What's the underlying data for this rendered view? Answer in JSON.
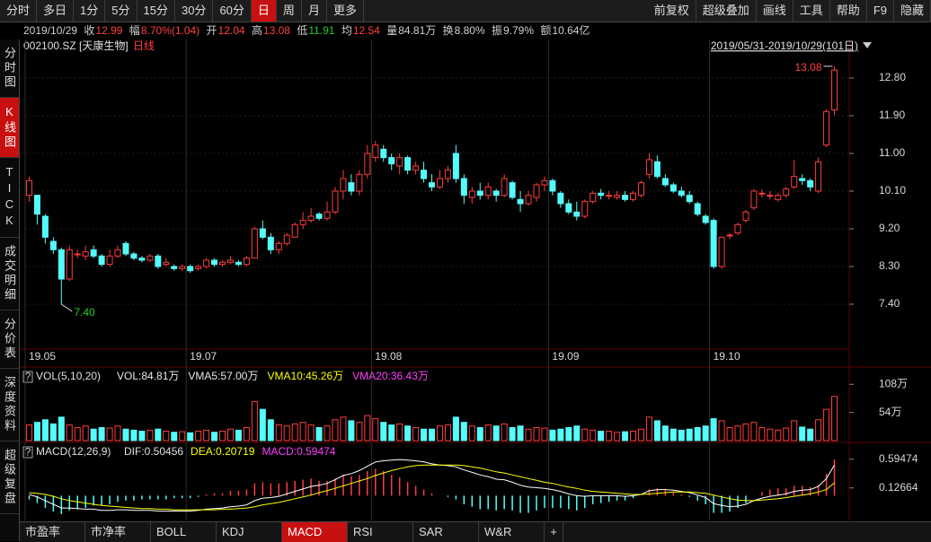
{
  "toolbar": {
    "left": [
      "分时",
      "多日",
      "1分",
      "5分",
      "15分",
      "30分",
      "60分",
      "日",
      "周",
      "月",
      "更多"
    ],
    "right": [
      "前复权",
      "超级叠加",
      "画线",
      "工具",
      "帮助",
      "F9",
      "隐藏"
    ]
  },
  "quote": {
    "date": "2019/10/29",
    "items": [
      {
        "label": "收",
        "value": 12.99
      },
      {
        "label": "幅",
        "value": "8.70%(1.04)"
      },
      {
        "label": "开",
        "value": 12.04
      },
      {
        "label": "高",
        "value": 13.08
      },
      {
        "label": "低",
        "value": 11.91
      },
      {
        "label": "均",
        "value": 12.54
      },
      {
        "label": "量",
        "value": "84.81万"
      },
      {
        "label": "换",
        "value": "8.80%"
      },
      {
        "label": "振",
        "value": "9.79%"
      },
      {
        "label": "额",
        "value": "10.64亿"
      }
    ]
  },
  "sidebar": [
    "分时图",
    "K线图",
    "TICK",
    "成交明细",
    "分价表",
    "深度资料",
    "超级复盘"
  ],
  "tabs": [
    "市盈率",
    "市净率",
    "BOLL",
    "KDJ",
    "MACD",
    "RSI",
    "SAR",
    "W&R",
    "+"
  ],
  "chart_data": [
    {
      "type": "candlestick",
      "title": "002100.SZ [天康生物]",
      "subtitle": "日线",
      "range_label": "2019/05/31-2019/10/29(101日)",
      "high_label": "13.08",
      "low_label": "7.40",
      "up_color": "#ff3c3c",
      "down_color": "#54fcfc",
      "grid": true,
      "categories": [
        "19.05",
        null,
        null,
        null,
        null,
        null,
        null,
        null,
        null,
        null,
        null,
        null,
        null,
        null,
        null,
        null,
        null,
        null,
        null,
        null,
        "19.07",
        null,
        null,
        null,
        null,
        null,
        null,
        null,
        null,
        null,
        null,
        null,
        null,
        null,
        null,
        null,
        null,
        null,
        null,
        null,
        null,
        null,
        null,
        "19.08",
        null,
        null,
        null,
        null,
        null,
        null,
        null,
        null,
        null,
        null,
        null,
        null,
        null,
        null,
        null,
        null,
        null,
        null,
        null,
        null,
        null,
        "19.09",
        null,
        null,
        null,
        null,
        null,
        null,
        null,
        null,
        null,
        null,
        null,
        null,
        null,
        null,
        null,
        null,
        null,
        null,
        null,
        "19.10",
        null,
        null,
        null,
        null,
        null,
        null,
        null,
        null,
        null,
        null,
        null,
        null,
        null,
        null,
        null
      ],
      "ohlc": [
        [
          10.0,
          10.45,
          9.85,
          10.35
        ],
        [
          10.0,
          10.0,
          9.3,
          9.55
        ],
        [
          9.5,
          9.55,
          8.85,
          9.0
        ],
        [
          8.9,
          9.0,
          8.6,
          8.7
        ],
        [
          8.7,
          8.75,
          7.4,
          8.0
        ],
        [
          8.0,
          8.8,
          7.95,
          8.7
        ],
        [
          8.6,
          8.7,
          8.5,
          8.6
        ],
        [
          8.55,
          8.8,
          8.45,
          8.65
        ],
        [
          8.7,
          8.8,
          8.5,
          8.55
        ],
        [
          8.55,
          8.6,
          8.3,
          8.35
        ],
        [
          8.35,
          8.7,
          8.3,
          8.55
        ],
        [
          8.55,
          8.8,
          8.5,
          8.7
        ],
        [
          8.85,
          8.9,
          8.55,
          8.6
        ],
        [
          8.6,
          8.65,
          8.45,
          8.5
        ],
        [
          8.5,
          8.55,
          8.4,
          8.45
        ],
        [
          8.45,
          8.6,
          8.4,
          8.55
        ],
        [
          8.55,
          8.6,
          8.25,
          8.3
        ],
        [
          8.35,
          8.5,
          8.3,
          8.4
        ],
        [
          8.3,
          8.35,
          8.2,
          8.25
        ],
        [
          8.25,
          8.35,
          8.2,
          8.3
        ],
        [
          8.3,
          8.35,
          8.15,
          8.2
        ],
        [
          8.25,
          8.35,
          8.2,
          8.3
        ],
        [
          8.3,
          8.5,
          8.25,
          8.45
        ],
        [
          8.45,
          8.5,
          8.3,
          8.35
        ],
        [
          8.35,
          8.45,
          8.3,
          8.4
        ],
        [
          8.4,
          8.55,
          8.35,
          8.45
        ],
        [
          8.4,
          8.45,
          8.3,
          8.35
        ],
        [
          8.35,
          8.55,
          8.3,
          8.5
        ],
        [
          8.5,
          9.25,
          8.5,
          9.2
        ],
        [
          9.2,
          9.4,
          8.95,
          9.0
        ],
        [
          9.0,
          9.1,
          8.6,
          8.7
        ],
        [
          8.7,
          8.9,
          8.6,
          8.85
        ],
        [
          8.85,
          9.1,
          8.8,
          9.05
        ],
        [
          9.0,
          9.35,
          9.0,
          9.3
        ],
        [
          9.3,
          9.6,
          9.2,
          9.4
        ],
        [
          9.4,
          9.7,
          9.35,
          9.5
        ],
        [
          9.55,
          9.6,
          9.4,
          9.45
        ],
        [
          9.45,
          9.85,
          9.4,
          9.6
        ],
        [
          9.6,
          10.2,
          9.55,
          10.1
        ],
        [
          10.1,
          10.6,
          9.9,
          10.4
        ],
        [
          10.3,
          10.5,
          10.0,
          10.1
        ],
        [
          10.1,
          10.6,
          10.0,
          10.5
        ],
        [
          10.5,
          11.2,
          10.4,
          11.0
        ],
        [
          10.9,
          11.3,
          10.8,
          11.2
        ],
        [
          11.1,
          11.2,
          10.8,
          10.9
        ],
        [
          10.9,
          11.0,
          10.6,
          10.75
        ],
        [
          10.7,
          11.0,
          10.5,
          10.9
        ],
        [
          10.9,
          10.95,
          10.5,
          10.6
        ],
        [
          10.6,
          10.8,
          10.5,
          10.7
        ],
        [
          10.6,
          10.8,
          10.3,
          10.4
        ],
        [
          10.3,
          10.5,
          10.1,
          10.2
        ],
        [
          10.2,
          10.6,
          10.15,
          10.4
        ],
        [
          10.4,
          10.7,
          10.3,
          10.6
        ],
        [
          11.0,
          11.2,
          10.3,
          10.4
        ],
        [
          10.4,
          10.5,
          9.8,
          10.0
        ],
        [
          9.95,
          10.2,
          9.8,
          10.1
        ],
        [
          10.1,
          10.3,
          9.9,
          10.0
        ],
        [
          10.0,
          10.3,
          9.9,
          10.2
        ],
        [
          10.1,
          10.15,
          9.85,
          10.0
        ],
        [
          10.0,
          10.5,
          9.95,
          10.4
        ],
        [
          10.3,
          10.35,
          9.9,
          9.95
        ],
        [
          9.9,
          10.1,
          9.6,
          9.8
        ],
        [
          9.8,
          10.1,
          9.75,
          10.0
        ],
        [
          9.95,
          10.3,
          9.85,
          10.25
        ],
        [
          10.25,
          10.45,
          10.1,
          10.35
        ],
        [
          10.35,
          10.4,
          10.0,
          10.1
        ],
        [
          10.05,
          10.1,
          9.7,
          9.8
        ],
        [
          9.8,
          9.9,
          9.55,
          9.6
        ],
        [
          9.6,
          9.85,
          9.4,
          9.5
        ],
        [
          9.5,
          9.9,
          9.45,
          9.85
        ],
        [
          9.85,
          10.1,
          9.8,
          10.05
        ],
        [
          10.05,
          10.15,
          9.9,
          10.0
        ],
        [
          10.0,
          10.1,
          9.9,
          10.0
        ],
        [
          9.95,
          10.1,
          9.9,
          10.0
        ],
        [
          10.0,
          10.1,
          9.85,
          9.9
        ],
        [
          9.9,
          10.1,
          9.85,
          10.05
        ],
        [
          10.0,
          10.35,
          9.95,
          10.3
        ],
        [
          10.5,
          11.0,
          10.4,
          10.85
        ],
        [
          10.8,
          10.95,
          10.4,
          10.45
        ],
        [
          10.4,
          10.5,
          10.2,
          10.25
        ],
        [
          10.25,
          10.3,
          10.05,
          10.1
        ],
        [
          10.1,
          10.2,
          9.95,
          10.0
        ],
        [
          10.0,
          10.1,
          9.8,
          9.85
        ],
        [
          9.8,
          9.85,
          9.5,
          9.55
        ],
        [
          9.5,
          9.55,
          9.3,
          9.35
        ],
        [
          9.4,
          9.45,
          8.25,
          8.3
        ],
        [
          8.3,
          9.0,
          8.25,
          9.0
        ],
        [
          9.05,
          9.1,
          8.95,
          9.05
        ],
        [
          9.1,
          9.35,
          9.05,
          9.3
        ],
        [
          9.4,
          9.65,
          9.35,
          9.6
        ],
        [
          9.7,
          10.15,
          9.65,
          10.1
        ],
        [
          10.05,
          10.15,
          9.95,
          10.05
        ],
        [
          10.0,
          10.1,
          9.9,
          10.0
        ],
        [
          9.9,
          10.05,
          9.85,
          10.0
        ],
        [
          10.0,
          10.2,
          9.95,
          10.15
        ],
        [
          10.2,
          10.85,
          10.15,
          10.45
        ],
        [
          10.4,
          10.5,
          10.25,
          10.35
        ],
        [
          10.35,
          10.4,
          10.1,
          10.2
        ],
        [
          10.1,
          10.9,
          10.05,
          10.8
        ],
        [
          11.2,
          12.05,
          11.15,
          12.0
        ],
        [
          12.04,
          13.08,
          11.91,
          12.99
        ]
      ],
      "ylim": [
        6.35,
        13.72
      ],
      "yticks": [
        {
          "value": 7.4,
          "label": "7.40"
        },
        {
          "value": 8.3,
          "label": "8.30"
        },
        {
          "value": 9.2,
          "label": "9.20"
        },
        {
          "value": 10.1,
          "label": "10.10"
        },
        {
          "value": 11.0,
          "label": "11.00"
        },
        {
          "value": 11.9,
          "label": "11.90"
        },
        {
          "value": 12.8,
          "label": "12.80"
        }
      ]
    },
    {
      "type": "volume",
      "title": "VOL(5,10,20)",
      "legend": [
        {
          "name": "VOL:84.81万",
          "color": "#e8e8e8"
        },
        {
          "name": "VMA5:57.00万",
          "color": "#e8e8e8"
        },
        {
          "name": "VMA10:45.26万",
          "color": "#ffff00"
        },
        {
          "name": "VMA20:36.43万",
          "color": "#ff40ff"
        }
      ],
      "values": [
        30,
        35,
        40,
        32,
        45,
        30,
        25,
        28,
        22,
        25,
        24,
        28,
        22,
        20,
        18,
        20,
        22,
        18,
        16,
        17,
        15,
        18,
        20,
        16,
        18,
        22,
        20,
        25,
        75,
        60,
        40,
        30,
        28,
        32,
        35,
        30,
        25,
        28,
        40,
        45,
        38,
        35,
        48,
        42,
        35,
        30,
        32,
        28,
        25,
        22,
        22,
        28,
        30,
        45,
        35,
        28,
        25,
        30,
        28,
        32,
        25,
        28,
        22,
        25,
        24,
        20,
        22,
        25,
        28,
        22,
        20,
        18,
        18,
        16,
        17,
        18,
        22,
        45,
        38,
        28,
        22,
        20,
        22,
        25,
        28,
        42,
        38,
        25,
        28,
        32,
        35,
        25,
        22,
        20,
        24,
        38,
        26,
        22,
        40,
        60,
        84.81
      ],
      "ylim": [
        0,
        136
      ],
      "yticks": [
        {
          "value": 108,
          "label": "108万"
        },
        {
          "value": 54,
          "label": "54万"
        }
      ]
    },
    {
      "type": "macd",
      "title": "MACD(12,26,9)",
      "up_color": "#ff3c3c",
      "down_color": "#54fcfc",
      "series": [
        {
          "name": "DIF:0.50456",
          "color": "#ffffff",
          "values": [
            0.02,
            -0.02,
            -0.08,
            -0.14,
            -0.2,
            -0.2,
            -0.21,
            -0.22,
            -0.22,
            -0.24,
            -0.24,
            -0.23,
            -0.23,
            -0.24,
            -0.24,
            -0.24,
            -0.25,
            -0.25,
            -0.25,
            -0.25,
            -0.25,
            -0.24,
            -0.22,
            -0.21,
            -0.2,
            -0.18,
            -0.17,
            -0.15,
            -0.08,
            -0.04,
            -0.03,
            -0.01,
            0.03,
            0.07,
            0.11,
            0.15,
            0.17,
            0.2,
            0.26,
            0.33,
            0.36,
            0.41,
            0.48,
            0.55,
            0.57,
            0.58,
            0.59,
            0.58,
            0.57,
            0.55,
            0.52,
            0.5,
            0.49,
            0.47,
            0.42,
            0.38,
            0.34,
            0.31,
            0.27,
            0.26,
            0.22,
            0.17,
            0.14,
            0.13,
            0.12,
            0.1,
            0.07,
            0.03,
            0.0,
            -0.01,
            0.0,
            0.0,
            0.0,
            0.0,
            -0.01,
            0.0,
            0.02,
            0.08,
            0.1,
            0.1,
            0.09,
            0.07,
            0.05,
            0.01,
            -0.03,
            -0.13,
            -0.16,
            -0.18,
            -0.17,
            -0.14,
            -0.08,
            -0.04,
            -0.01,
            0.01,
            0.03,
            0.07,
            0.09,
            0.1,
            0.15,
            0.28,
            0.5
          ]
        },
        {
          "name": "DEA:0.20719",
          "color": "#ffff00",
          "values": [
            0.05,
            0.04,
            0.02,
            -0.01,
            -0.05,
            -0.08,
            -0.1,
            -0.12,
            -0.14,
            -0.16,
            -0.17,
            -0.18,
            -0.19,
            -0.2,
            -0.21,
            -0.21,
            -0.22,
            -0.22,
            -0.23,
            -0.23,
            -0.23,
            -0.23,
            -0.23,
            -0.23,
            -0.22,
            -0.22,
            -0.21,
            -0.2,
            -0.18,
            -0.15,
            -0.13,
            -0.11,
            -0.08,
            -0.05,
            -0.02,
            0.01,
            0.05,
            0.08,
            0.12,
            0.16,
            0.2,
            0.24,
            0.28,
            0.33,
            0.37,
            0.41,
            0.44,
            0.47,
            0.49,
            0.5,
            0.5,
            0.5,
            0.5,
            0.5,
            0.49,
            0.47,
            0.45,
            0.42,
            0.39,
            0.37,
            0.34,
            0.31,
            0.28,
            0.25,
            0.22,
            0.2,
            0.17,
            0.14,
            0.12,
            0.09,
            0.07,
            0.06,
            0.05,
            0.04,
            0.03,
            0.02,
            0.02,
            0.03,
            0.04,
            0.05,
            0.06,
            0.06,
            0.06,
            0.05,
            0.04,
            0.01,
            -0.02,
            -0.05,
            -0.07,
            -0.08,
            -0.08,
            -0.07,
            -0.06,
            -0.05,
            -0.03,
            -0.01,
            0.01,
            0.03,
            0.06,
            0.1,
            0.21
          ]
        }
      ],
      "histogram": {
        "name": "MACD:0.59474",
        "color": "#ff40ff",
        "values": [
          -0.06,
          -0.12,
          -0.2,
          -0.26,
          -0.3,
          -0.24,
          -0.22,
          -0.2,
          -0.16,
          -0.16,
          -0.14,
          -0.1,
          -0.08,
          -0.08,
          -0.06,
          -0.06,
          -0.06,
          -0.06,
          -0.04,
          -0.04,
          -0.04,
          -0.02,
          0.02,
          0.04,
          0.04,
          0.08,
          0.08,
          0.1,
          0.2,
          0.22,
          0.2,
          0.2,
          0.22,
          0.24,
          0.26,
          0.28,
          0.24,
          0.24,
          0.28,
          0.34,
          0.32,
          0.34,
          0.4,
          0.44,
          0.4,
          0.34,
          0.3,
          0.22,
          0.16,
          0.1,
          0.04,
          0.0,
          -0.02,
          -0.06,
          -0.14,
          -0.18,
          -0.22,
          -0.22,
          -0.24,
          -0.22,
          -0.24,
          -0.28,
          -0.28,
          -0.24,
          -0.2,
          -0.2,
          -0.2,
          -0.22,
          -0.24,
          -0.2,
          -0.14,
          -0.12,
          -0.1,
          -0.08,
          -0.08,
          -0.04,
          0.0,
          0.1,
          0.12,
          0.1,
          0.06,
          0.02,
          -0.02,
          -0.08,
          -0.14,
          -0.28,
          -0.28,
          -0.26,
          -0.2,
          -0.12,
          0.0,
          0.06,
          0.1,
          0.12,
          0.12,
          0.16,
          0.16,
          0.14,
          0.18,
          0.36,
          0.59
        ]
      },
      "ylim": [
        -0.36,
        0.84
      ],
      "yticks": [
        0.59474,
        0.12664
      ]
    }
  ]
}
